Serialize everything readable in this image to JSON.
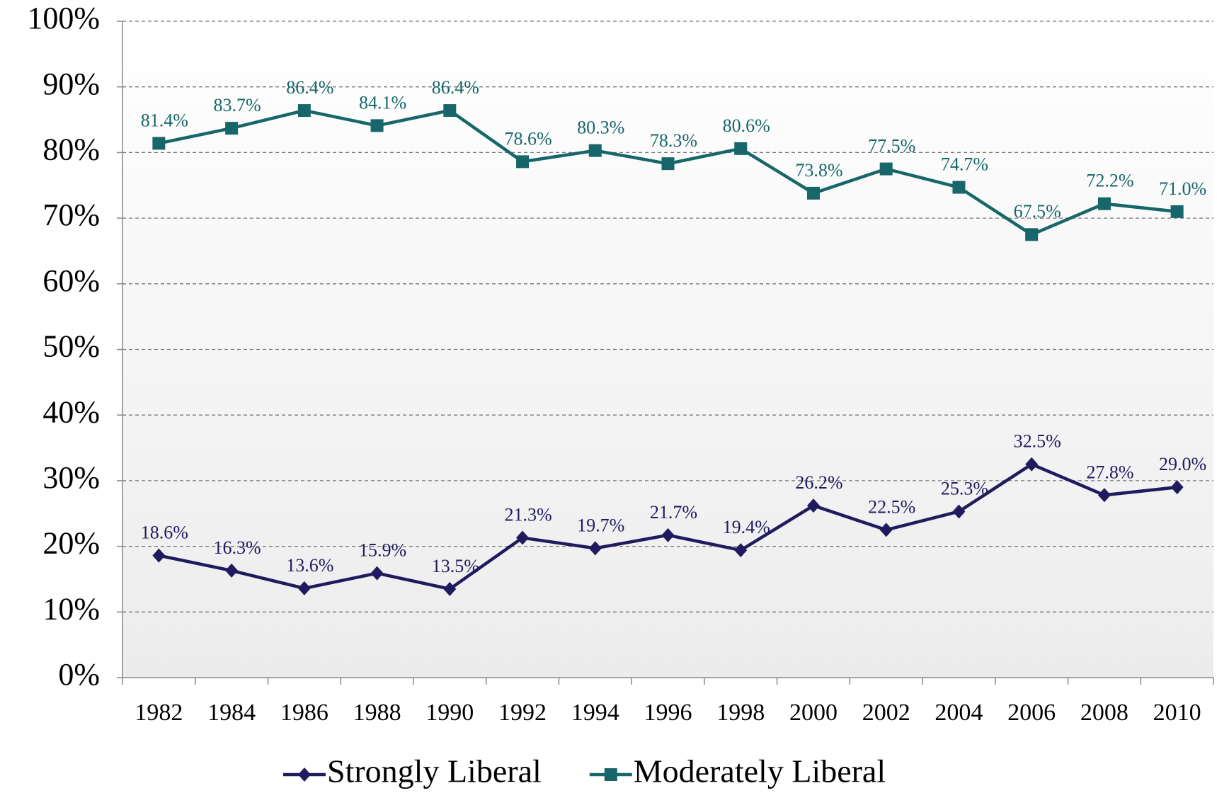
{
  "chart_data": {
    "type": "line",
    "categories": [
      "1982",
      "1984",
      "1986",
      "1988",
      "1990",
      "1992",
      "1994",
      "1996",
      "1998",
      "2000",
      "2002",
      "2004",
      "2006",
      "2008",
      "2010"
    ],
    "series": [
      {
        "name": "Strongly Liberal",
        "color": "#1f1b5e",
        "marker": "diamond",
        "values": [
          18.6,
          16.3,
          13.6,
          15.9,
          13.5,
          21.3,
          19.7,
          21.7,
          19.4,
          26.2,
          22.5,
          25.3,
          32.5,
          27.8,
          29.0
        ],
        "value_labels": [
          "18.6%",
          "16.3%",
          "13.6%",
          "15.9%",
          "13.5%",
          "21.3%",
          "19.7%",
          "21.7%",
          "19.4%",
          "26.2%",
          "22.5%",
          "25.3%",
          "32.5%",
          "27.8%",
          "29.0%"
        ]
      },
      {
        "name": "Moderately Liberal",
        "color": "#17666a",
        "marker": "square",
        "values": [
          81.4,
          83.7,
          86.4,
          84.1,
          86.4,
          78.6,
          80.3,
          78.3,
          80.6,
          73.8,
          77.5,
          74.7,
          67.5,
          72.2,
          71.0
        ],
        "value_labels": [
          "81.4%",
          "83.7%",
          "86.4%",
          "84.1%",
          "86.4%",
          "78.6%",
          "80.3%",
          "78.3%",
          "80.6%",
          "73.8%",
          "77.5%",
          "74.7%",
          "67.5%",
          "72.2%",
          "71.0%"
        ]
      }
    ],
    "ylim": [
      0,
      100
    ],
    "yticks": [
      {
        "value": 0,
        "label": "0%"
      },
      {
        "value": 10,
        "label": "10%"
      },
      {
        "value": 20,
        "label": "20%"
      },
      {
        "value": 30,
        "label": "30%"
      },
      {
        "value": 40,
        "label": "40%"
      },
      {
        "value": 50,
        "label": "50%"
      },
      {
        "value": 60,
        "label": "60%"
      },
      {
        "value": 70,
        "label": "70%"
      },
      {
        "value": 80,
        "label": "80%"
      },
      {
        "value": 90,
        "label": "90%"
      },
      {
        "value": 100,
        "label": "100%"
      }
    ],
    "grid": true,
    "legend": "bottom"
  }
}
